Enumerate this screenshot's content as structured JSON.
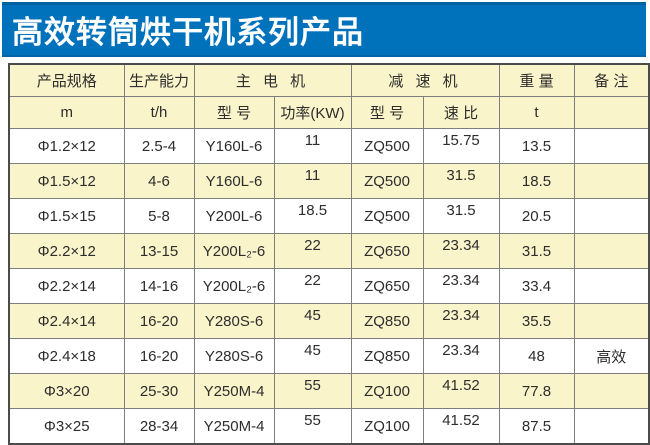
{
  "banner": {
    "title": "高效转筒烘干机系列产品",
    "bg_color": "#0072BC",
    "text_color": "#FFFFFF"
  },
  "table": {
    "header_row1": [
      {
        "label": "产品规格",
        "colspan": 1
      },
      {
        "label": "生产能力",
        "colspan": 1
      },
      {
        "label": "主 电 机",
        "colspan": 2
      },
      {
        "label": "减 速 机",
        "colspan": 2
      },
      {
        "label": "重 量",
        "colspan": 1
      },
      {
        "label": "备 注",
        "colspan": 1
      }
    ],
    "header_row2": [
      "m",
      "t/h",
      "型 号",
      "功率(KW)",
      "型 号",
      "速 比",
      "t",
      ""
    ],
    "rows": [
      [
        "Φ1.2×12",
        "2.5-4",
        "Y160L-6",
        "11",
        "ZQ500",
        "15.75",
        "13.5",
        ""
      ],
      [
        "Φ1.5×12",
        "4-6",
        "Y160L-6",
        "11",
        "ZQ500",
        "31.5",
        "18.5",
        ""
      ],
      [
        "Φ1.5×15",
        "5-8",
        "Y200L-6",
        "18.5",
        "ZQ500",
        "31.5",
        "20.5",
        ""
      ],
      [
        "Φ2.2×12",
        "13-15",
        "Y200L₂-6",
        "22",
        "ZQ650",
        "23.34",
        "31.5",
        ""
      ],
      [
        "Φ2.2×14",
        "14-16",
        "Y200L₂-6",
        "22",
        "ZQ650",
        "23.34",
        "33.4",
        ""
      ],
      [
        "Φ2.4×14",
        "16-20",
        "Y280S-6",
        "45",
        "ZQ850",
        "23.34",
        "35.5",
        ""
      ],
      [
        "Φ2.4×18",
        "16-20",
        "Y280S-6",
        "45",
        "ZQ850",
        "23.34",
        "48",
        "高效"
      ],
      [
        "Φ3×20",
        "25-30",
        "Y250M-4",
        "55",
        "ZQ100",
        "41.52",
        "77.8",
        ""
      ],
      [
        "Φ3×25",
        "28-34",
        "Y250M-4",
        "55",
        "ZQ100",
        "41.52",
        "87.5",
        ""
      ]
    ],
    "colors": {
      "header_bg": "#FAF4CA",
      "row_alt_bg": "#FAF4CA",
      "row_bg": "#FFFFFF",
      "grid_border": "#7E7E7E",
      "outer_border": "#4B4B4B",
      "text": "#2D2D2D"
    }
  }
}
